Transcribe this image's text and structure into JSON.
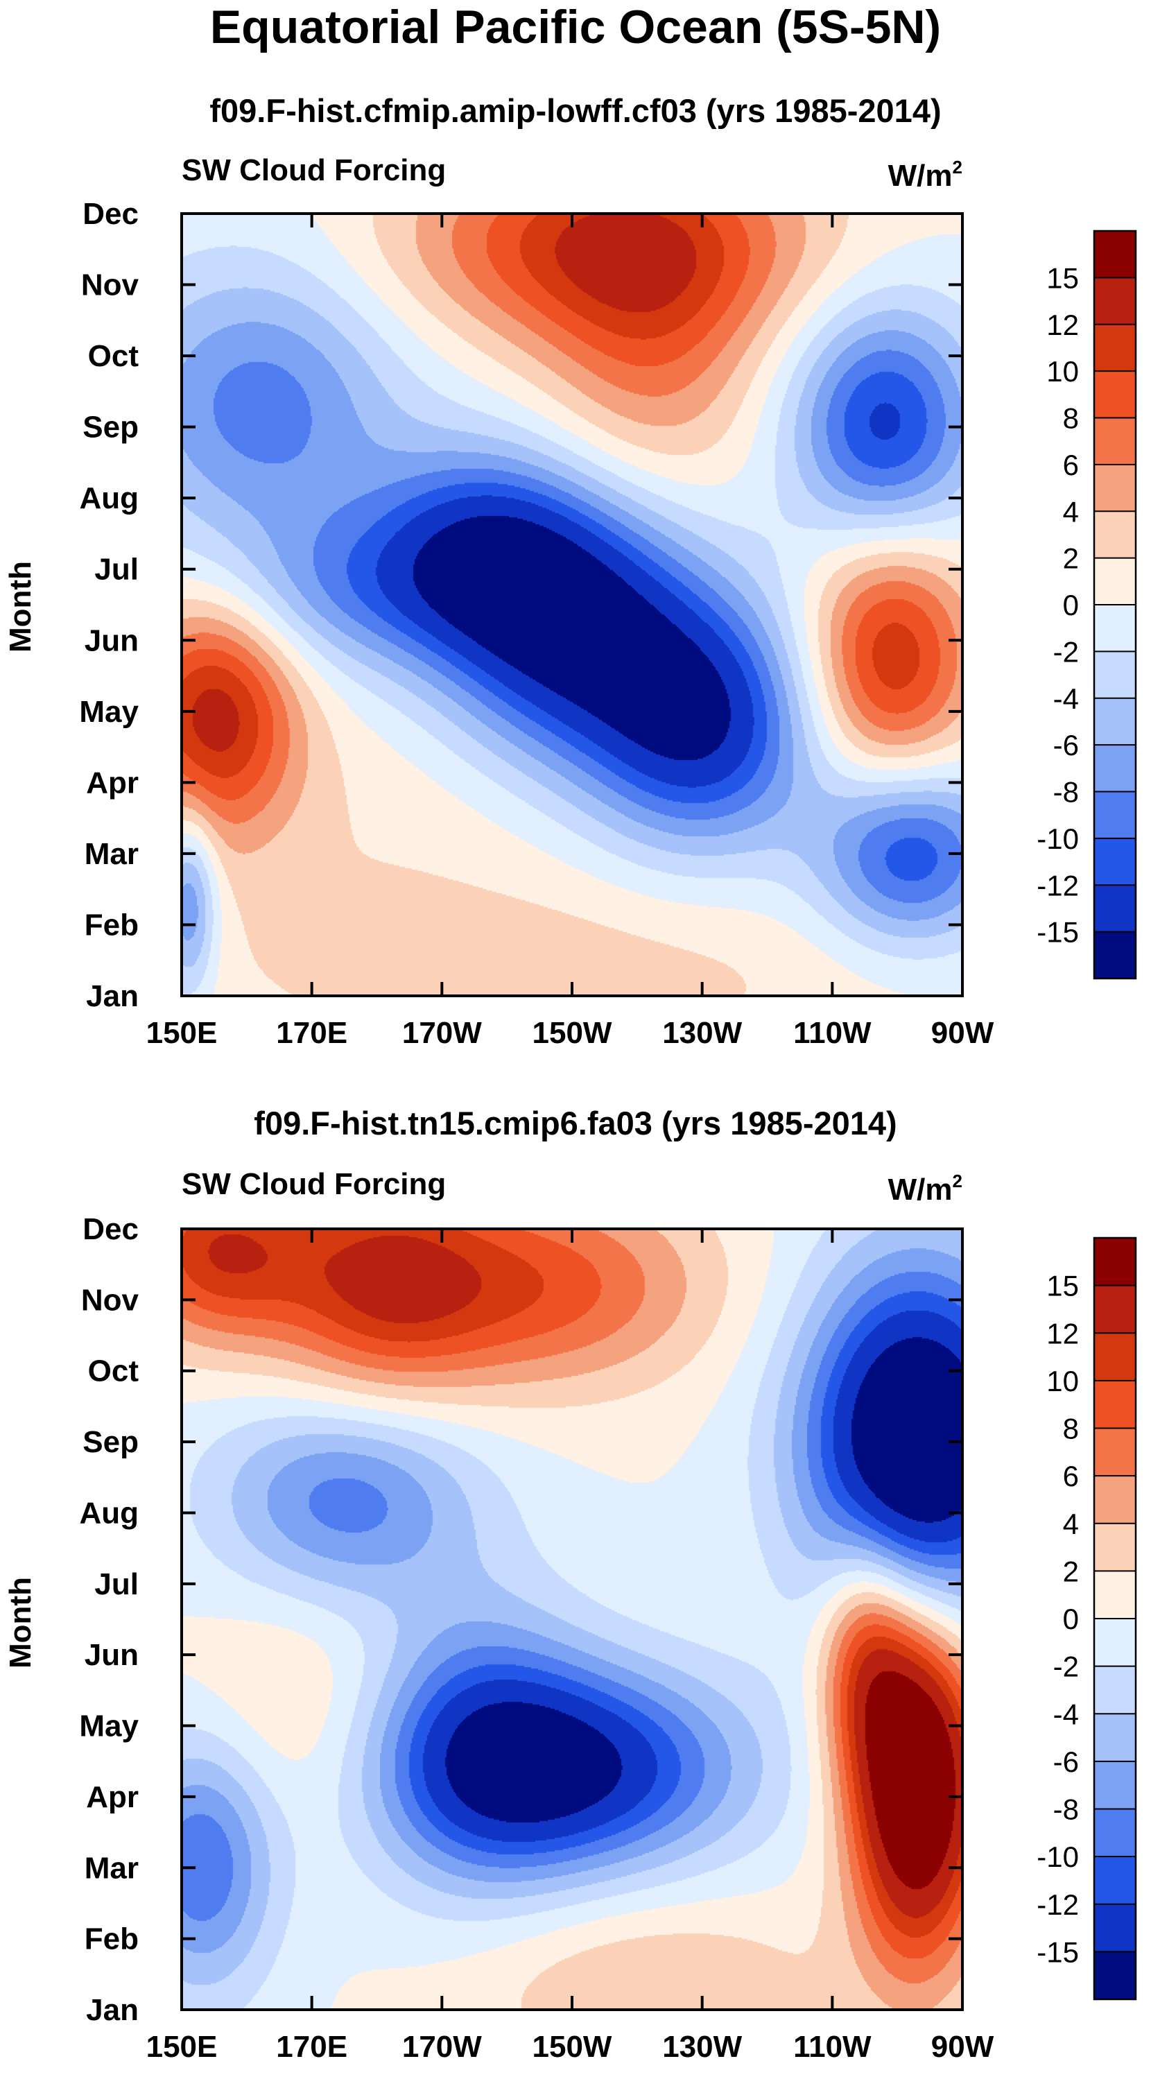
{
  "figure": {
    "main_title": "Equatorial Pacific Ocean (5S-5N)"
  },
  "colorbar": {
    "labels": [
      "15",
      "12",
      "10",
      "8",
      "6",
      "4",
      "2",
      "0",
      "-2",
      "-4",
      "-6",
      "-8",
      "-10",
      "-12",
      "-15"
    ],
    "colors": [
      "#8b0000",
      "#b8210f",
      "#d4380e",
      "#ee5224",
      "#f4744a",
      "#f5a27f",
      "#fbd2b7",
      "#fff1e4",
      "#e2efff",
      "#c6dbff",
      "#a5c2fa",
      "#7ca3f3",
      "#4f7df0",
      "#2457e8",
      "#1035c4",
      "#000b80"
    ]
  },
  "chart_data": [
    {
      "type": "heatmap",
      "title": "f09.F-hist.cfmip.amip-lowff.cf03 (yrs 1985-2014)",
      "left_label": "SW Cloud Forcing",
      "units": "W/m",
      "units_sup": "2",
      "xlabel": "",
      "ylabel": "Month",
      "x_ticks": [
        "150E",
        "170E",
        "170W",
        "150W",
        "130W",
        "110W",
        "90W"
      ],
      "y_ticks": [
        "Jan",
        "Feb",
        "Mar",
        "Apr",
        "May",
        "Jun",
        "Jul",
        "Aug",
        "Sep",
        "Oct",
        "Nov",
        "Dec"
      ],
      "lon_range_deg_east": [
        150,
        270
      ],
      "levels": [
        -15,
        -12,
        -10,
        -8,
        -6,
        -4,
        -2,
        0,
        2,
        4,
        6,
        8,
        10,
        12,
        15
      ],
      "features": [
        {
          "lon": 155,
          "month": 4.0,
          "value": 13,
          "sx": 9,
          "sy": 1.2
        },
        {
          "lon": 151,
          "month": 1.3,
          "value": -9,
          "sx": 3,
          "sy": 0.9
        },
        {
          "lon": 162,
          "month": 8.3,
          "value": -9,
          "sx": 15,
          "sy": 1.4
        },
        {
          "lon": 175,
          "month": 5.7,
          "value": -6,
          "sx": 16,
          "sy": 0.8
        },
        {
          "lon": 210,
          "month": 5.2,
          "value": -16,
          "sx": 14,
          "sy": 1.3
        },
        {
          "lon": 230,
          "month": 3.8,
          "value": -14,
          "sx": 12,
          "sy": 1.2
        },
        {
          "lon": 195,
          "month": 6.3,
          "value": -10,
          "sx": 12,
          "sy": 1.0
        },
        {
          "lon": 262,
          "month": 2.0,
          "value": -12,
          "sx": 10,
          "sy": 0.9
        },
        {
          "lon": 258,
          "month": 8.0,
          "value": -13,
          "sx": 10,
          "sy": 1.2
        },
        {
          "lon": 259,
          "month": 4.8,
          "value": 12,
          "sx": 9,
          "sy": 1.3
        },
        {
          "lon": 215,
          "month": 10.6,
          "value": 11,
          "sx": 22,
          "sy": 1.0
        },
        {
          "lon": 222,
          "month": 9.0,
          "value": 6,
          "sx": 12,
          "sy": 1.5
        },
        {
          "lon": 205,
          "month": 0.3,
          "value": 3,
          "sx": 40,
          "sy": 1.0
        },
        {
          "lon": 180,
          "month": 2.5,
          "value": 1.5,
          "sx": 22,
          "sy": 1.2
        }
      ]
    },
    {
      "type": "heatmap",
      "title": "f09.F-hist.tn15.cmip6.fa03 (yrs 1985-2014)",
      "left_label": "SW Cloud Forcing",
      "units": "W/m",
      "units_sup": "2",
      "xlabel": "",
      "ylabel": "Month",
      "x_ticks": [
        "150E",
        "170E",
        "170W",
        "150W",
        "130W",
        "110W",
        "90W"
      ],
      "y_ticks": [
        "Jan",
        "Feb",
        "Mar",
        "Apr",
        "May",
        "Jun",
        "Jul",
        "Aug",
        "Sep",
        "Oct",
        "Nov",
        "Dec"
      ],
      "lon_range_deg_east": [
        150,
        270
      ],
      "levels": [
        -15,
        -12,
        -10,
        -8,
        -6,
        -4,
        -2,
        0,
        2,
        4,
        6,
        8,
        10,
        12,
        15
      ],
      "features": [
        {
          "lon": 155,
          "month": 10.7,
          "value": 11,
          "sx": 10,
          "sy": 0.9
        },
        {
          "lon": 180,
          "month": 10.3,
          "value": 10,
          "sx": 12,
          "sy": 1.2
        },
        {
          "lon": 205,
          "month": 10.2,
          "value": 9,
          "sx": 18,
          "sy": 1.0
        },
        {
          "lon": 175,
          "month": 7.2,
          "value": -9,
          "sx": 14,
          "sy": 1.0
        },
        {
          "lon": 210,
          "month": 3.4,
          "value": -15,
          "sx": 18,
          "sy": 1.0
        },
        {
          "lon": 195,
          "month": 3.8,
          "value": -8,
          "sx": 12,
          "sy": 1.5
        },
        {
          "lon": 153,
          "month": 2.1,
          "value": -10,
          "sx": 8,
          "sy": 1.3
        },
        {
          "lon": 263,
          "month": 8.0,
          "value": -22,
          "sx": 12,
          "sy": 1.7
        },
        {
          "lon": 263,
          "month": 3.2,
          "value": 22,
          "sx": 7,
          "sy": 1.7
        },
        {
          "lon": 255,
          "month": 5.0,
          "value": 9,
          "sx": 5,
          "sy": 1.2
        },
        {
          "lon": 167,
          "month": 4.2,
          "value": 3,
          "sx": 14,
          "sy": 1.2
        },
        {
          "lon": 222,
          "month": 0.3,
          "value": 4,
          "sx": 20,
          "sy": 0.9
        }
      ]
    }
  ]
}
